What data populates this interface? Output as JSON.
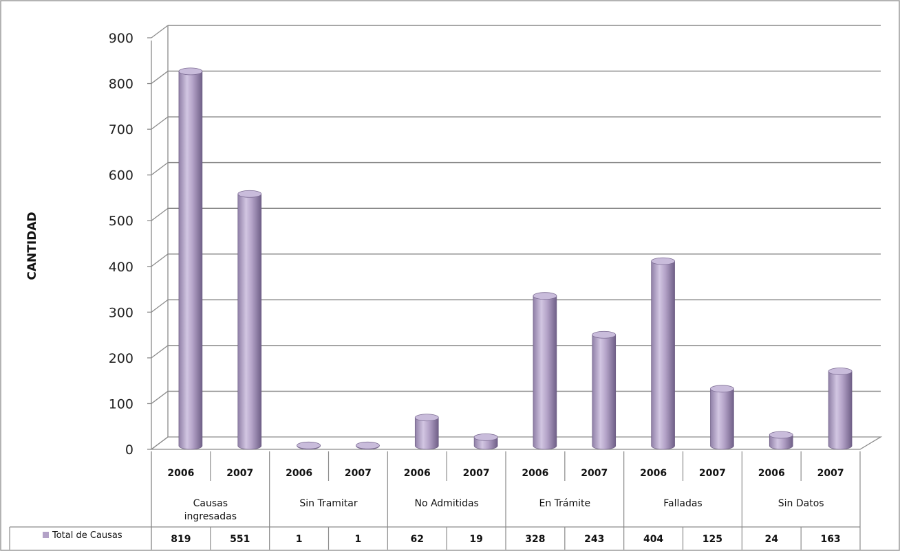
{
  "chart_data": {
    "type": "bar",
    "ylabel": "CANTIDAD",
    "ylim": [
      0,
      900
    ],
    "yticks": [
      0,
      100,
      200,
      300,
      400,
      500,
      600,
      700,
      800,
      900
    ],
    "groups": [
      "Causas ingresadas",
      "Sin Tramitar",
      "No Admitidas",
      "En Trámite",
      "Falladas",
      "Sin Datos"
    ],
    "years": [
      "2006",
      "2007"
    ],
    "categories": [
      "2006",
      "2007",
      "2006",
      "2007",
      "2006",
      "2007",
      "2006",
      "2007",
      "2006",
      "2007",
      "2006",
      "2007"
    ],
    "series": [
      {
        "name": "Total de Causas",
        "values": [
          819,
          551,
          1,
          1,
          62,
          19,
          328,
          243,
          404,
          125,
          24,
          163
        ]
      }
    ],
    "grid": true,
    "bar_color": "#b3a2c7",
    "data_table": true
  }
}
